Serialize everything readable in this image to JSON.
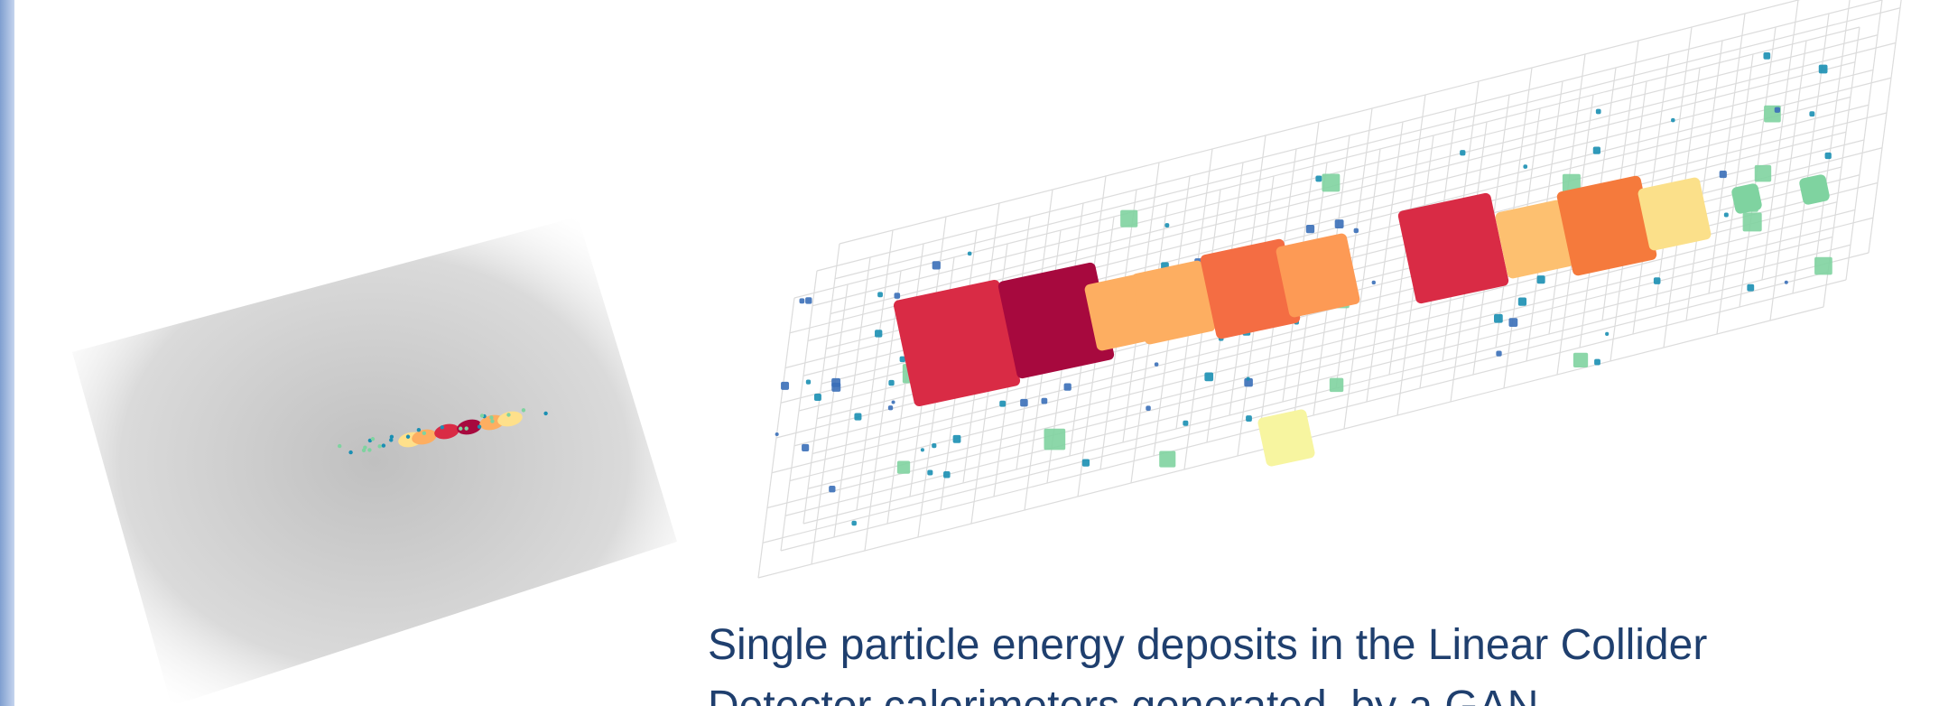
{
  "caption": {
    "lines": [
      "Single particle energy deposits in the Linear Collider",
      "Detector calorimeters generated  by a GAN"
    ]
  }
}
